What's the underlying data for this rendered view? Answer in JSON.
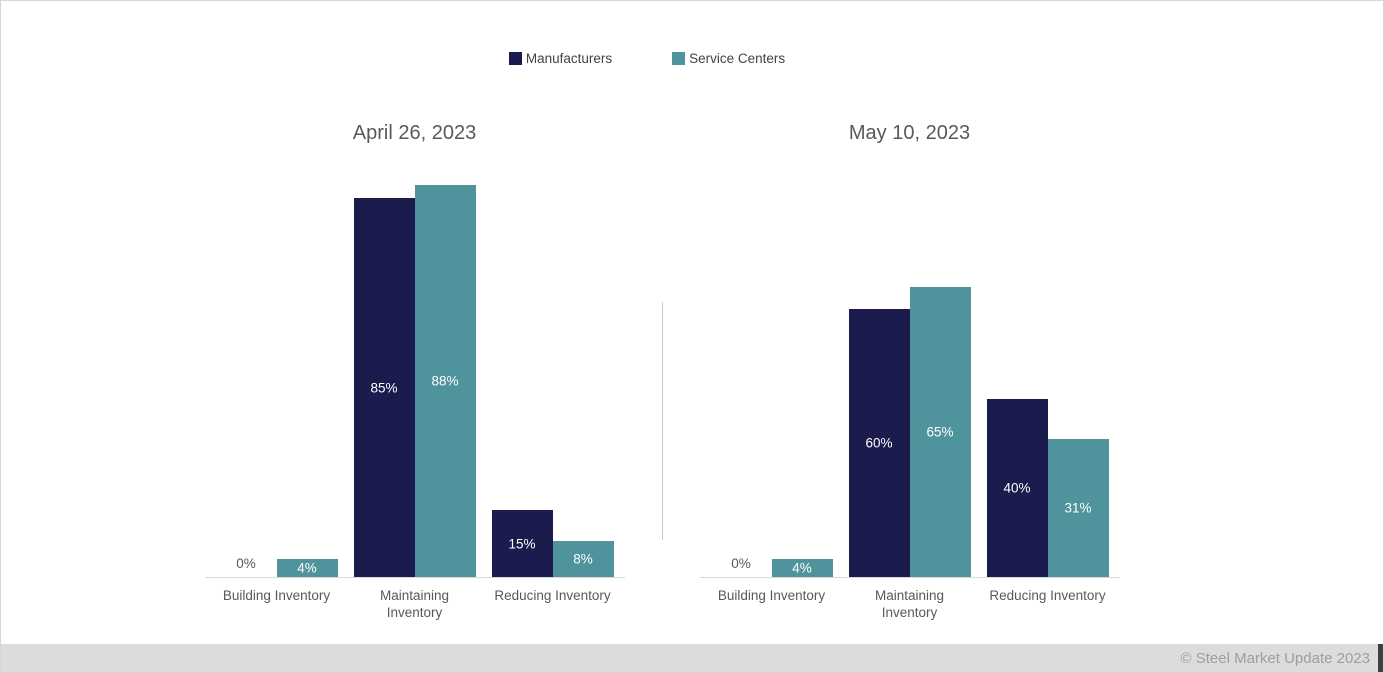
{
  "chart_data": [
    {
      "type": "bar",
      "title": "April 26, 2023",
      "categories": [
        "Building Inventory",
        "Maintaining Inventory",
        "Reducing Inventory"
      ],
      "series": [
        {
          "name": "Manufacturers",
          "color": "#1b1b4d",
          "values": [
            0,
            85,
            15
          ]
        },
        {
          "name": "Service Centers",
          "color": "#4f949c",
          "values": [
            4,
            88,
            8
          ]
        }
      ],
      "value_suffix": "%",
      "ylim": [
        0,
        100
      ],
      "grid": false,
      "legend_position": "top"
    },
    {
      "type": "bar",
      "title": "May 10, 2023",
      "categories": [
        "Building Inventory",
        "Maintaining Inventory",
        "Reducing Inventory"
      ],
      "series": [
        {
          "name": "Manufacturers",
          "color": "#1b1b4d",
          "values": [
            0,
            60,
            40
          ]
        },
        {
          "name": "Service Centers",
          "color": "#4f949c",
          "values": [
            4,
            65,
            31
          ]
        }
      ],
      "value_suffix": "%",
      "ylim": [
        0,
        100
      ],
      "grid": false,
      "legend_position": "top"
    }
  ],
  "footer": {
    "copyright": "© Steel Market Update 2023"
  }
}
